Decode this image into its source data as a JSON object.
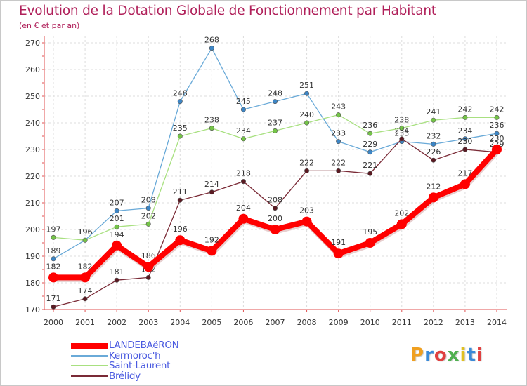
{
  "chart_data": {
    "type": "line",
    "title": "Evolution de la Dotation Globale de Fonctionnement par Habitant",
    "subtitle": "(en € et par an)",
    "xlabel": "",
    "ylabel": "",
    "ylim": [
      170,
      270
    ],
    "yticks": [
      170,
      180,
      190,
      200,
      210,
      220,
      230,
      240,
      250,
      260,
      270
    ],
    "grid": true,
    "legend_position": "bottom-left",
    "categories": [
      "2000",
      "2001",
      "2002",
      "2003",
      "2004",
      "2005",
      "2006",
      "2007",
      "2008",
      "2009",
      "2010",
      "2011",
      "2012",
      "2013",
      "2014"
    ],
    "series": [
      {
        "name": "Kermoroc'h",
        "color": "#6aaad8",
        "marker_color": "#3d86c6",
        "values": [
          189,
          196,
          207,
          208,
          248,
          268,
          245,
          248,
          251,
          233,
          229,
          233,
          232,
          234,
          236
        ]
      },
      {
        "name": "Saint-Laurent",
        "color": "#a8e080",
        "marker_color": "#74c447",
        "values": [
          197,
          196,
          201,
          202,
          235,
          238,
          234,
          237,
          240,
          243,
          236,
          238,
          241,
          242,
          242
        ]
      },
      {
        "name": "Brélidy",
        "color": "#7a2a36",
        "marker_color": "#5a1a22",
        "values": [
          171,
          174,
          181,
          182,
          211,
          214,
          218,
          208,
          222,
          222,
          221,
          234,
          226,
          230,
          229
        ]
      },
      {
        "name": "LANDEBAëRON",
        "color": "#ff0000",
        "marker_color": "#ff0000",
        "values": [
          182,
          182,
          194,
          186,
          196,
          192,
          204,
          200,
          203,
          191,
          195,
          202,
          212,
          217,
          230
        ]
      }
    ]
  },
  "legend": {
    "items": [
      {
        "label": "LANDEBAëRON",
        "color": "#ff0000"
      },
      {
        "label": "Kermoroc'h",
        "color": "#6aaad8"
      },
      {
        "label": "Saint-Laurent",
        "color": "#a8e080"
      },
      {
        "label": "Brélidy",
        "color": "#7a2a36"
      }
    ]
  },
  "logo": {
    "letters": [
      "P",
      "r",
      "o",
      "x",
      "i",
      "t",
      "i"
    ],
    "colors": [
      "#f0a020",
      "#3a8ad8",
      "#e04040",
      "#50b050",
      "#e0c020",
      "#3a8ad8",
      "#e04040"
    ]
  }
}
